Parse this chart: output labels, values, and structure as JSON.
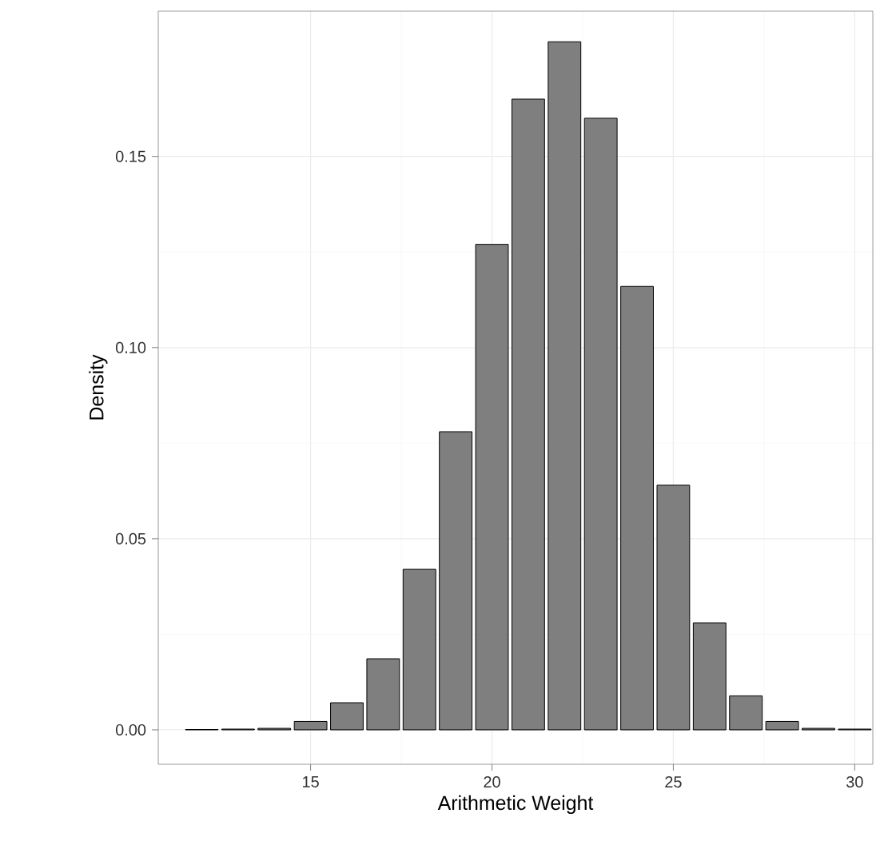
{
  "chart_data": {
    "type": "histogram",
    "xlabel": "Arithmetic Weight",
    "ylabel": "Density",
    "bins": [
      11.5,
      12.5,
      13.5,
      14.5,
      15.5,
      16.5,
      17.5,
      18.5,
      19.5,
      20.5,
      21.5,
      22.5,
      23.5,
      24.5,
      25.5,
      26.5,
      27.5,
      28.5,
      29.5,
      30.5
    ],
    "values": [
      0.0001,
      0.0002,
      0.0004,
      0.0022,
      0.0071,
      0.0186,
      0.042,
      0.078,
      0.127,
      0.165,
      0.18,
      0.16,
      0.116,
      0.064,
      0.028,
      0.0089,
      0.0022,
      0.0004,
      0.0002
    ],
    "color": "#7f7f7f",
    "xlim": [
      10.8,
      30.5
    ],
    "ylim": [
      -0.009,
      0.188
    ],
    "xticks": [
      15,
      20,
      25,
      30
    ],
    "yticks": [
      {
        "value": 0,
        "label": "0.00"
      },
      {
        "value": 0.05,
        "label": "0.05"
      },
      {
        "value": 0.1,
        "label": "0.10"
      },
      {
        "value": 0.15,
        "label": "0.15"
      }
    ],
    "grid": true
  }
}
